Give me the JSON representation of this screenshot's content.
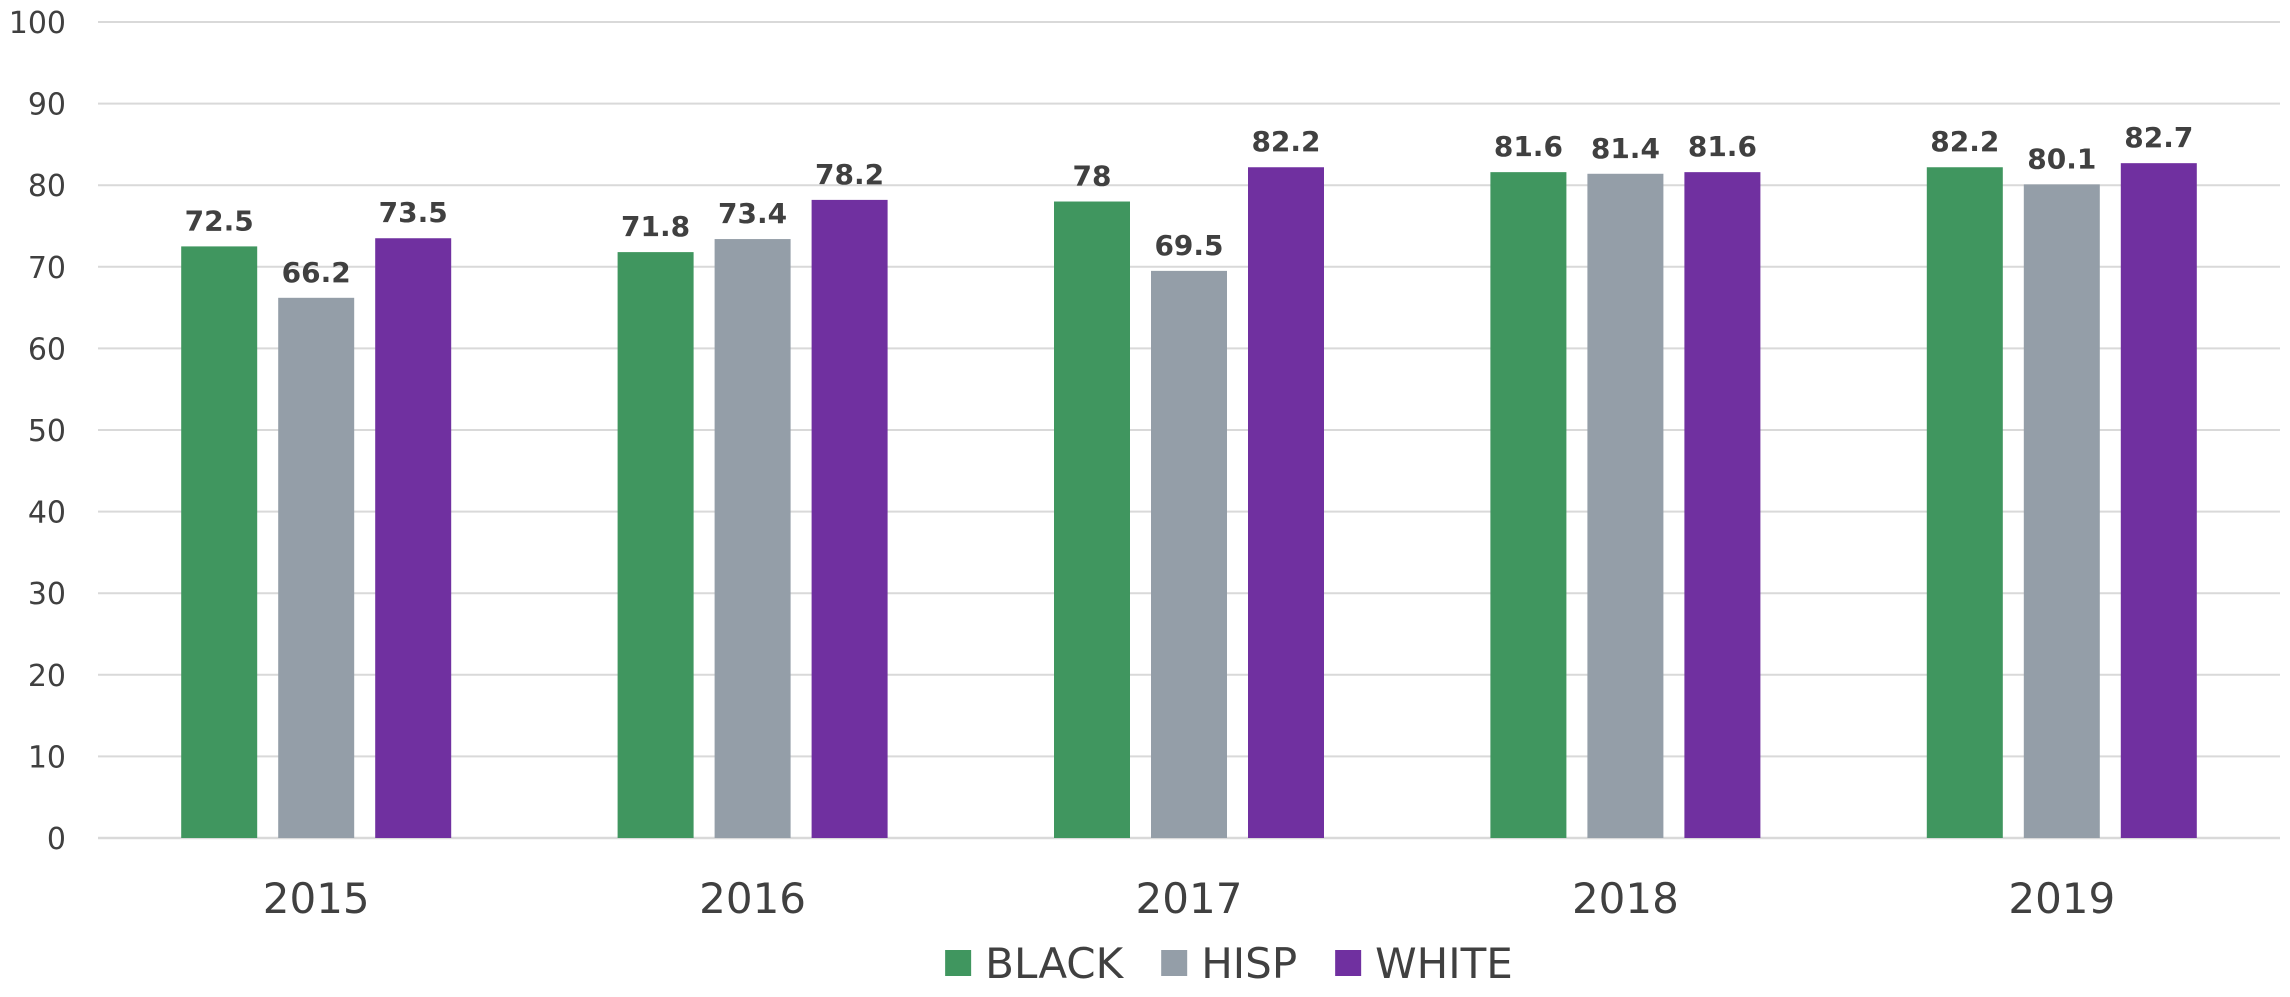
{
  "chart_data": {
    "type": "bar",
    "categories": [
      "2015",
      "2016",
      "2017",
      "2018",
      "2019"
    ],
    "series": [
      {
        "name": "BLACK",
        "color": "#40965f",
        "values": [
          72.5,
          71.8,
          78,
          81.6,
          82.2
        ]
      },
      {
        "name": "HISP",
        "color": "#949ea8",
        "values": [
          66.2,
          73.4,
          69.5,
          81.4,
          80.1
        ]
      },
      {
        "name": "WHITE",
        "color": "#7030a0",
        "values": [
          73.5,
          78.2,
          82.2,
          81.6,
          82.7
        ]
      }
    ],
    "ylim": [
      0,
      100
    ],
    "yticks": [
      0,
      10,
      20,
      30,
      40,
      50,
      60,
      70,
      80,
      90,
      100
    ],
    "grid": true,
    "legend": "bottom-center",
    "data_labels": true,
    "title": "",
    "xlabel": "",
    "ylabel": ""
  }
}
